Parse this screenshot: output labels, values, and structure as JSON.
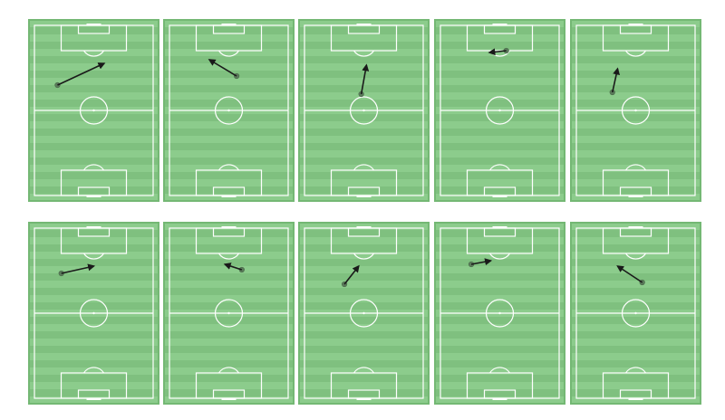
{
  "colors": {
    "background": "#ffffff",
    "grass_light": "#8ccc8c",
    "grass_dark": "#7fc07f",
    "pitch_edge": "#74b874",
    "line": "#ffffff",
    "arrow": "#1a1a1a",
    "start_dot": "#5a7a5a"
  },
  "pitches": [
    {
      "arrow": {
        "from": [
          0.22,
          0.36
        ],
        "to": [
          0.58,
          0.24
        ]
      }
    },
    {
      "arrow": {
        "from": [
          0.56,
          0.31
        ],
        "to": [
          0.35,
          0.22
        ]
      }
    },
    {
      "arrow": {
        "from": [
          0.48,
          0.41
        ],
        "to": [
          0.52,
          0.25
        ]
      }
    },
    {
      "arrow": {
        "from": [
          0.55,
          0.17
        ],
        "to": [
          0.42,
          0.18
        ]
      }
    },
    {
      "arrow": {
        "from": [
          0.32,
          0.4
        ],
        "to": [
          0.36,
          0.27
        ]
      }
    },
    {
      "arrow": {
        "from": [
          0.25,
          0.28
        ],
        "to": [
          0.5,
          0.24
        ]
      }
    },
    {
      "arrow": {
        "from": [
          0.6,
          0.26
        ],
        "to": [
          0.47,
          0.23
        ]
      }
    },
    {
      "arrow": {
        "from": [
          0.35,
          0.34
        ],
        "to": [
          0.46,
          0.24
        ]
      }
    },
    {
      "arrow": {
        "from": [
          0.28,
          0.23
        ],
        "to": [
          0.43,
          0.21
        ]
      }
    },
    {
      "arrow": {
        "from": [
          0.55,
          0.33
        ],
        "to": [
          0.36,
          0.24
        ]
      }
    }
  ]
}
